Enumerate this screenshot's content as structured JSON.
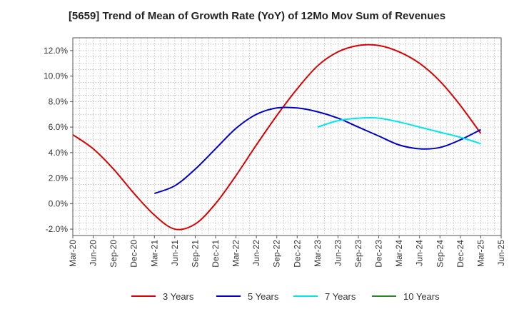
{
  "chart_data": {
    "type": "line",
    "title": "[5659]  Trend of Mean of Growth Rate (YoY) of 12Mo Mov Sum of Revenues",
    "xlabel": "",
    "ylabel": "",
    "ylim": [
      -2.5,
      13.0
    ],
    "y_ticks": [
      -2.0,
      0.0,
      2.0,
      4.0,
      6.0,
      8.0,
      10.0,
      12.0
    ],
    "y_tick_labels": [
      "-2.0%",
      "0.0%",
      "2.0%",
      "4.0%",
      "6.0%",
      "8.0%",
      "10.0%",
      "12.0%"
    ],
    "x_ticks": [
      "Mar-20",
      "Jun-20",
      "Sep-20",
      "Dec-20",
      "Mar-21",
      "Jun-21",
      "Sep-21",
      "Dec-21",
      "Mar-22",
      "Jun-22",
      "Sep-22",
      "Dec-22",
      "Mar-23",
      "Jun-23",
      "Sep-23",
      "Dec-23",
      "Mar-24",
      "Jun-24",
      "Sep-24",
      "Dec-24",
      "Mar-25",
      "Jun-25"
    ],
    "grid": true,
    "legend_position": "bottom",
    "series": [
      {
        "name": "3 Years",
        "color": "#dd0000",
        "points": [
          {
            "x": "Mar-20",
            "y": 5.4
          },
          {
            "x": "Jun-20",
            "y": 4.3
          },
          {
            "x": "Sep-20",
            "y": 2.7
          },
          {
            "x": "Dec-20",
            "y": 0.8
          },
          {
            "x": "Mar-21",
            "y": -0.9
          },
          {
            "x": "Jun-21",
            "y": -2.0
          },
          {
            "x": "Sep-21",
            "y": -1.6
          },
          {
            "x": "Dec-21",
            "y": 0.0
          },
          {
            "x": "Mar-22",
            "y": 2.2
          },
          {
            "x": "Jun-22",
            "y": 4.6
          },
          {
            "x": "Sep-22",
            "y": 6.9
          },
          {
            "x": "Dec-22",
            "y": 9.0
          },
          {
            "x": "Mar-23",
            "y": 10.8
          },
          {
            "x": "Jun-23",
            "y": 11.9
          },
          {
            "x": "Sep-23",
            "y": 12.4
          },
          {
            "x": "Dec-23",
            "y": 12.4
          },
          {
            "x": "Mar-24",
            "y": 11.9
          },
          {
            "x": "Jun-24",
            "y": 11.0
          },
          {
            "x": "Sep-24",
            "y": 9.6
          },
          {
            "x": "Dec-24",
            "y": 7.7
          },
          {
            "x": "Mar-25",
            "y": 5.5
          }
        ]
      },
      {
        "name": "5 Years",
        "color": "#0000cc",
        "points": [
          {
            "x": "Mar-21",
            "y": 0.8
          },
          {
            "x": "Jun-21",
            "y": 1.4
          },
          {
            "x": "Sep-21",
            "y": 2.7
          },
          {
            "x": "Dec-21",
            "y": 4.3
          },
          {
            "x": "Mar-22",
            "y": 5.9
          },
          {
            "x": "Jun-22",
            "y": 7.0
          },
          {
            "x": "Sep-22",
            "y": 7.5
          },
          {
            "x": "Dec-22",
            "y": 7.5
          },
          {
            "x": "Mar-23",
            "y": 7.2
          },
          {
            "x": "Jun-23",
            "y": 6.7
          },
          {
            "x": "Sep-23",
            "y": 6.0
          },
          {
            "x": "Dec-23",
            "y": 5.3
          },
          {
            "x": "Mar-24",
            "y": 4.6
          },
          {
            "x": "Jun-24",
            "y": 4.3
          },
          {
            "x": "Sep-24",
            "y": 4.4
          },
          {
            "x": "Dec-24",
            "y": 5.0
          },
          {
            "x": "Mar-25",
            "y": 5.8
          }
        ]
      },
      {
        "name": "7 Years",
        "color": "#00e5ee",
        "points": [
          {
            "x": "Mar-23",
            "y": 6.0
          },
          {
            "x": "Jun-23",
            "y": 6.5
          },
          {
            "x": "Sep-23",
            "y": 6.7
          },
          {
            "x": "Dec-23",
            "y": 6.7
          },
          {
            "x": "Mar-24",
            "y": 6.4
          },
          {
            "x": "Jun-24",
            "y": 6.0
          },
          {
            "x": "Sep-24",
            "y": 5.6
          },
          {
            "x": "Dec-24",
            "y": 5.2
          },
          {
            "x": "Mar-25",
            "y": 4.7
          }
        ]
      },
      {
        "name": "10 Years",
        "color": "#228b22",
        "points": []
      }
    ]
  }
}
